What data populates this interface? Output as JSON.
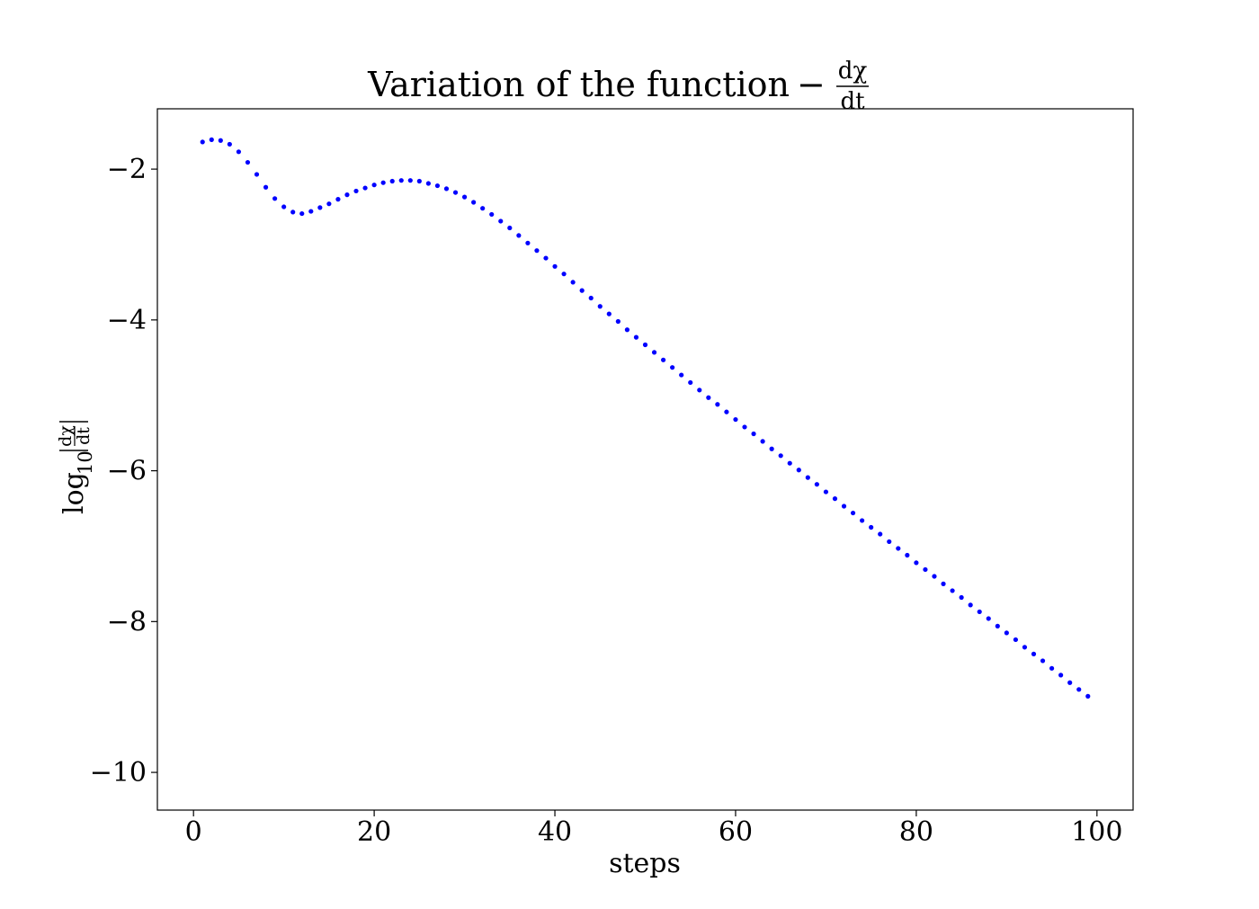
{
  "chart_data": {
    "type": "scatter",
    "title": "Variation of the function",
    "title_math": {
      "sign": "−",
      "numerator": "dχ",
      "denominator": "dt"
    },
    "xlabel": "steps",
    "ylabel_math": {
      "prefix": "log",
      "subscript": "10",
      "numerator": "dχ",
      "denominator": "dt"
    },
    "xlim": [
      -4,
      104
    ],
    "ylim": [
      -10.5,
      -1.2
    ],
    "xticks": [
      0,
      20,
      40,
      60,
      80,
      100
    ],
    "xtick_labels": [
      "0",
      "20",
      "40",
      "60",
      "80",
      "100"
    ],
    "yticks": [
      -2,
      -4,
      -6,
      -8,
      -10
    ],
    "ytick_labels": [
      "−2",
      "−4",
      "−6",
      "−8",
      "−10"
    ],
    "grid": false,
    "marker_color": "#0000ff",
    "series": [
      {
        "x": [
          1,
          2,
          3,
          4,
          5,
          6,
          7,
          8,
          9,
          10,
          11,
          12,
          13,
          14,
          15,
          16,
          17,
          18,
          19,
          20,
          21,
          22,
          23,
          24,
          25,
          26,
          27,
          28,
          29,
          30,
          31,
          32,
          33,
          34,
          35,
          36,
          37,
          38,
          39,
          40,
          41,
          42,
          43,
          44,
          45,
          46,
          47,
          48,
          49,
          50,
          51,
          52,
          53,
          54,
          55,
          56,
          57,
          58,
          59,
          60,
          61,
          62,
          63,
          64,
          65,
          66,
          67,
          68,
          69,
          70,
          71,
          72,
          73,
          74,
          75,
          76,
          77,
          78,
          79,
          80,
          81,
          82,
          83,
          84,
          85,
          86,
          87,
          88,
          89,
          90,
          91,
          92,
          93,
          94,
          95,
          96,
          97,
          98,
          99
        ],
        "y": [
          -1.64,
          -1.61,
          -1.62,
          -1.67,
          -1.77,
          -1.91,
          -2.07,
          -2.24,
          -2.39,
          -2.5,
          -2.57,
          -2.59,
          -2.56,
          -2.51,
          -2.46,
          -2.4,
          -2.34,
          -2.29,
          -2.25,
          -2.21,
          -2.18,
          -2.16,
          -2.15,
          -2.15,
          -2.16,
          -2.19,
          -2.22,
          -2.26,
          -2.31,
          -2.37,
          -2.44,
          -2.52,
          -2.6,
          -2.69,
          -2.78,
          -2.88,
          -2.98,
          -3.08,
          -3.18,
          -3.29,
          -3.39,
          -3.5,
          -3.61,
          -3.71,
          -3.82,
          -3.92,
          -4.02,
          -4.13,
          -4.23,
          -4.33,
          -4.43,
          -4.53,
          -4.63,
          -4.73,
          -4.83,
          -4.93,
          -5.03,
          -5.12,
          -5.22,
          -5.32,
          -5.42,
          -5.51,
          -5.61,
          -5.71,
          -5.8,
          -5.9,
          -5.99,
          -6.09,
          -6.18,
          -6.28,
          -6.37,
          -6.47,
          -6.56,
          -6.66,
          -6.75,
          -6.84,
          -6.94,
          -7.03,
          -7.12,
          -7.22,
          -7.31,
          -7.4,
          -7.5,
          -7.59,
          -7.68,
          -7.78,
          -7.87,
          -7.96,
          -8.06,
          -8.15,
          -8.24,
          -8.34,
          -8.43,
          -8.52,
          -8.62,
          -8.71,
          -8.81,
          -8.9,
          -8.99
        ]
      }
    ]
  }
}
